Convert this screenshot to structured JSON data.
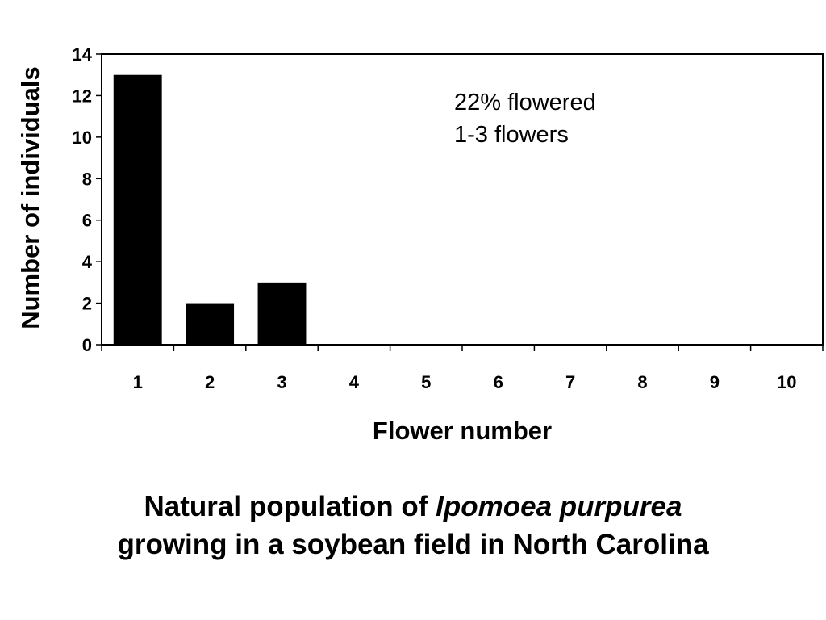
{
  "chart_data": {
    "type": "bar",
    "categories": [
      "1",
      "2",
      "3",
      "4",
      "5",
      "6",
      "7",
      "8",
      "9",
      "10"
    ],
    "values": [
      13,
      2,
      3,
      0,
      0,
      0,
      0,
      0,
      0,
      0
    ],
    "xlabel": "Flower number",
    "ylabel": "Number of individuals",
    "ylim": [
      0,
      14
    ],
    "yticks": [
      "0",
      "2",
      "4",
      "6",
      "8",
      "10",
      "12",
      "14"
    ],
    "grid": false,
    "bar_color": "#000000",
    "annotations": [
      "22% flowered",
      "1-3 flowers"
    ]
  },
  "caption": {
    "line1_prefix": "Natural population of ",
    "line1_species": "Ipomoea purpurea",
    "line2": "growing in a soybean field in North Carolina"
  }
}
